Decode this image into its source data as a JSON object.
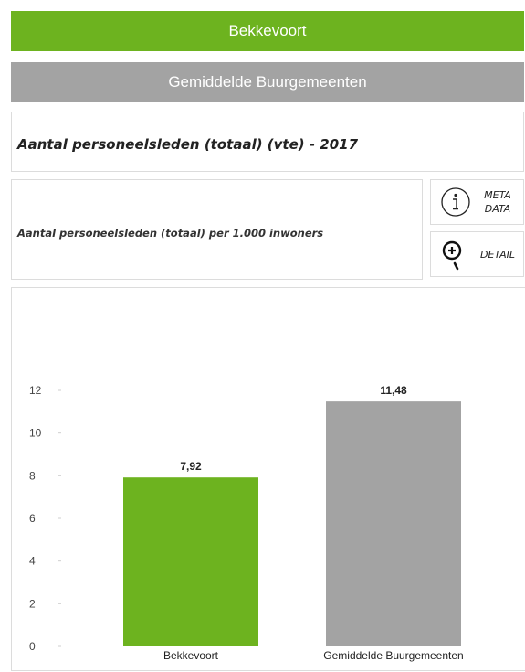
{
  "header": {
    "municipality": "Bekkevoort",
    "comparison": "Gemiddelde Buurgemeenten"
  },
  "indicator": {
    "title": "Aantal personeelsleden (totaal) (vte) - 2017",
    "subtitle": "Aantal personeelsleden (totaal) per 1.000 inwoners"
  },
  "buttons": {
    "meta_line1": "META",
    "meta_line2": "DATA",
    "detail": "DETAIL"
  },
  "colors": {
    "green": "#6db31f",
    "grey": "#a3a3a3"
  },
  "icons": {
    "meta": "info-icon",
    "detail": "zoom-in-icon"
  },
  "chart_data": {
    "type": "bar",
    "categories": [
      "Bekkevoort",
      "Gemiddelde Buurgemeenten"
    ],
    "values": [
      7.92,
      11.48
    ],
    "data_labels": [
      "7,92",
      "11,48"
    ],
    "bar_colors": [
      "#6db31f",
      "#a3a3a3"
    ],
    "ylim": [
      0,
      12
    ],
    "yticks": [
      0,
      2,
      4,
      6,
      8,
      10,
      12
    ],
    "title": "",
    "xlabel": "",
    "ylabel": "",
    "grid": false
  }
}
